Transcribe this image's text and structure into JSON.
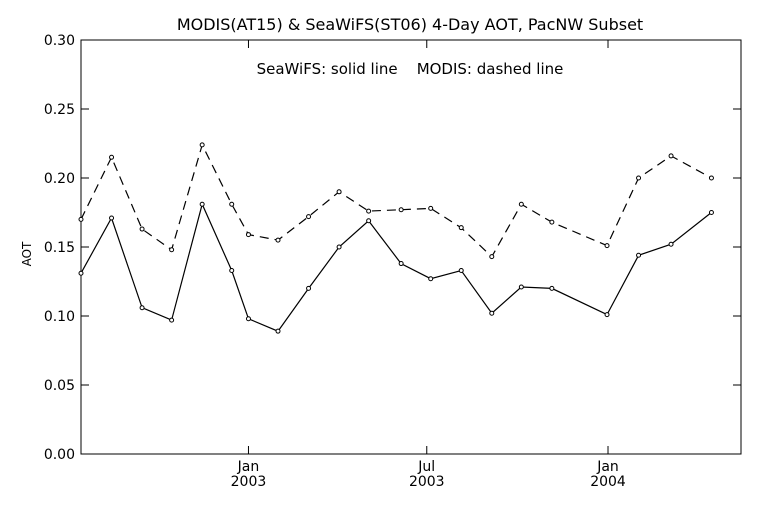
{
  "chart_data": {
    "type": "line",
    "title": "MODIS(AT15) & SeaWiFS(ST06) 4-Day AOT, PacNW Subset",
    "annotation": "SeaWiFS: solid line    MODIS: dashed line",
    "xlabel": "",
    "ylabel": "AOT",
    "ylim": [
      0.0,
      0.3
    ],
    "yticks": [
      "0.00",
      "0.05",
      "0.10",
      "0.15",
      "0.20",
      "0.25",
      "0.30"
    ],
    "xlim": [
      "2002-07-15",
      "2004-05-15"
    ],
    "xticks": [
      {
        "date": "2003-01-01",
        "label1": "Jan",
        "label2": "2003"
      },
      {
        "date": "2003-07-01",
        "label1": "Jul",
        "label2": "2003"
      },
      {
        "date": "2004-01-01",
        "label1": "Jan",
        "label2": "2004"
      }
    ],
    "grid": false,
    "series": [
      {
        "name": "SeaWiFS",
        "style": "solid",
        "color": "#000000",
        "points": [
          {
            "x": "2002-07-15",
            "y": 0.131
          },
          {
            "x": "2002-08-15",
            "y": 0.171
          },
          {
            "x": "2002-09-15",
            "y": 0.106
          },
          {
            "x": "2002-10-15",
            "y": 0.097
          },
          {
            "x": "2002-11-15",
            "y": 0.181
          },
          {
            "x": "2002-12-15",
            "y": 0.133
          },
          {
            "x": "2003-01-01",
            "y": 0.098
          },
          {
            "x": "2003-01-31",
            "y": 0.089
          },
          {
            "x": "2003-03-03",
            "y": 0.12
          },
          {
            "x": "2003-04-03",
            "y": 0.15
          },
          {
            "x": "2003-05-03",
            "y": 0.169
          },
          {
            "x": "2003-06-05",
            "y": 0.138
          },
          {
            "x": "2003-07-05",
            "y": 0.127
          },
          {
            "x": "2003-08-05",
            "y": 0.133
          },
          {
            "x": "2003-09-05",
            "y": 0.102
          },
          {
            "x": "2003-10-05",
            "y": 0.121
          },
          {
            "x": "2003-11-05",
            "y": 0.12
          },
          {
            "x": "2003-12-31",
            "y": 0.101
          },
          {
            "x": "2004-02-01",
            "y": 0.144
          },
          {
            "x": "2004-03-05",
            "y": 0.152
          },
          {
            "x": "2004-04-15",
            "y": 0.175
          }
        ]
      },
      {
        "name": "MODIS",
        "style": "dashed",
        "color": "#000000",
        "points": [
          {
            "x": "2002-07-15",
            "y": 0.17
          },
          {
            "x": "2002-08-15",
            "y": 0.215
          },
          {
            "x": "2002-09-15",
            "y": 0.163
          },
          {
            "x": "2002-10-15",
            "y": 0.148
          },
          {
            "x": "2002-11-15",
            "y": 0.224
          },
          {
            "x": "2002-12-15",
            "y": 0.181
          },
          {
            "x": "2003-01-01",
            "y": 0.159
          },
          {
            "x": "2003-01-31",
            "y": 0.155
          },
          {
            "x": "2003-03-03",
            "y": 0.172
          },
          {
            "x": "2003-04-03",
            "y": 0.19
          },
          {
            "x": "2003-05-03",
            "y": 0.176
          },
          {
            "x": "2003-06-05",
            "y": 0.177
          },
          {
            "x": "2003-07-05",
            "y": 0.178
          },
          {
            "x": "2003-08-05",
            "y": 0.164
          },
          {
            "x": "2003-09-05",
            "y": 0.143
          },
          {
            "x": "2003-10-05",
            "y": 0.181
          },
          {
            "x": "2003-11-05",
            "y": 0.168
          },
          {
            "x": "2003-12-31",
            "y": 0.151
          },
          {
            "x": "2004-02-01",
            "y": 0.2
          },
          {
            "x": "2004-03-05",
            "y": 0.216
          },
          {
            "x": "2004-04-15",
            "y": 0.2
          }
        ]
      }
    ]
  }
}
